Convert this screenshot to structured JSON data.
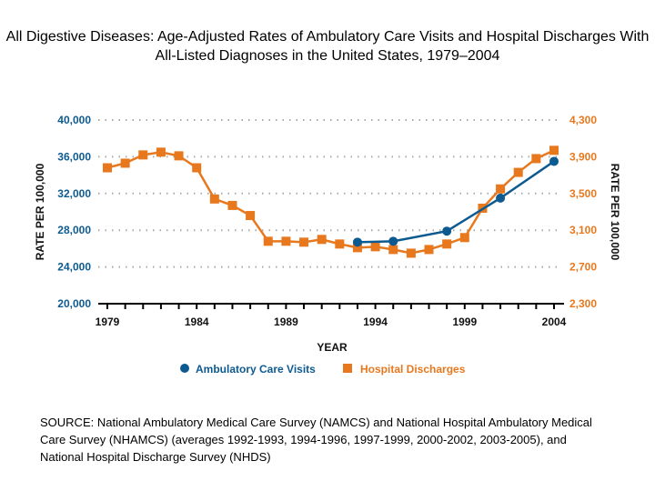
{
  "chart_data": {
    "type": "line",
    "title": "All Digestive Diseases:  Age-Adjusted Rates of Ambulatory Care Visits and Hospital Discharges With All-Listed Diagnoses in the United States, 1979–2004",
    "xlabel": "YEAR",
    "ylabel_left": "RATE PER 100,000",
    "ylabel_right": "RATE PER 100,000",
    "xlim": [
      1979,
      2004
    ],
    "x_ticks": [
      "1979",
      "1984",
      "1989",
      "1994",
      "1999",
      "2004"
    ],
    "ylim_left": [
      20000,
      40000
    ],
    "y_ticks_left": [
      "20,000",
      "24,000",
      "28,000",
      "32,000",
      "36,000",
      "40,000"
    ],
    "ylim_right": [
      2300,
      4300
    ],
    "y_ticks_right": [
      "2,300",
      "2,700",
      "3,100",
      "3,500",
      "3,900",
      "4,300"
    ],
    "grid": "horizontal dotted",
    "legend_position": "bottom",
    "series": [
      {
        "name": "Ambulatory Care Visits",
        "axis": "left",
        "color": "#0d5a91",
        "marker": "circle",
        "x": [
          1993,
          1995,
          1998,
          2001,
          2004
        ],
        "values": [
          26700,
          26800,
          27900,
          31500,
          35500
        ]
      },
      {
        "name": "Hospital Discharges",
        "axis": "right",
        "color": "#e8781e",
        "marker": "square",
        "x": [
          1979,
          1980,
          1981,
          1982,
          1983,
          1984,
          1985,
          1986,
          1987,
          1988,
          1989,
          1990,
          1991,
          1992,
          1993,
          1994,
          1995,
          1996,
          1997,
          1998,
          1999,
          2000,
          2001,
          2002,
          2003,
          2004
        ],
        "values": [
          3780,
          3830,
          3920,
          3950,
          3910,
          3780,
          3440,
          3370,
          3260,
          2980,
          2980,
          2970,
          3000,
          2950,
          2910,
          2920,
          2890,
          2850,
          2890,
          2950,
          3020,
          3340,
          3550,
          3730,
          3880,
          3970
        ]
      }
    ]
  },
  "source": "SOURCE: National Ambulatory Medical Care Survey (NAMCS) and National Hospital Ambulatory Medical Care Survey (NHAMCS) (averages 1992-1993, 1994-1996, 1997-1999, 2000-2002, 2003-2005), and National Hospital Discharge Survey (NHDS)"
}
